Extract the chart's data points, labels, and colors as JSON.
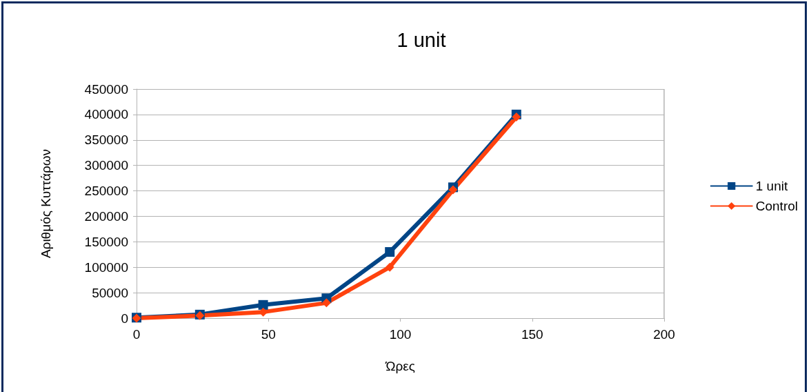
{
  "chart_data": {
    "type": "line",
    "title": "1 unit",
    "xlabel": "Ώρες",
    "ylabel": "Αριθμός Κυττάρων",
    "x": [
      0,
      24,
      48,
      72,
      96,
      120,
      144
    ],
    "series": [
      {
        "name": "1 unit",
        "color": "#004586",
        "marker": "square",
        "values": [
          1000,
          7000,
          26000,
          39000,
          130000,
          257000,
          400000
        ]
      },
      {
        "name": "Control",
        "color": "#ff420e",
        "marker": "diamond",
        "values": [
          0,
          5000,
          12000,
          30000,
          100000,
          252000,
          395000
        ]
      }
    ],
    "xlim": [
      0,
      200
    ],
    "xticks": [
      0,
      50,
      100,
      150,
      200
    ],
    "ylim": [
      0,
      450000
    ],
    "yticks": [
      0,
      50000,
      100000,
      150000,
      200000,
      250000,
      300000,
      350000,
      400000,
      450000
    ],
    "grid": "y",
    "legend": "right",
    "line_style": "solid"
  }
}
